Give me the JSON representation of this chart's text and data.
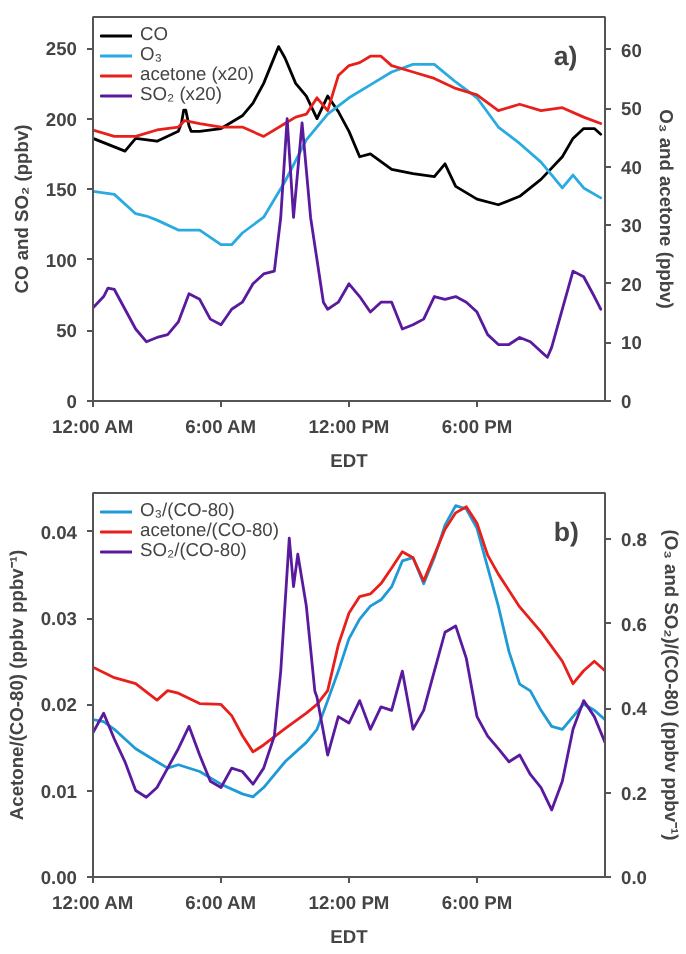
{
  "chart_data": [
    {
      "type": "line",
      "xlabel": "EDT",
      "ylabel": "CO and SO₂ (ppbv)",
      "y2label": "O₃ and acetone (ppbv)",
      "annotations": [
        "a)"
      ],
      "xlim": [
        0,
        24
      ],
      "xticks": [
        {
          "value": 0,
          "label": "12:00 AM"
        },
        {
          "value": 6,
          "label": "6:00 AM"
        },
        {
          "value": 12,
          "label": "12:00 PM"
        },
        {
          "value": 18,
          "label": "6:00 PM"
        }
      ],
      "ylim": [
        0,
        272
      ],
      "yticks": [
        0,
        50,
        100,
        150,
        200,
        250
      ],
      "y2lim": [
        0,
        65.6
      ],
      "y2ticks": [
        0,
        10,
        20,
        30,
        40,
        50,
        60
      ],
      "grid": false,
      "legend": "top left",
      "marker": "none",
      "line_style": "solid",
      "series": [
        {
          "name": "CO",
          "color": "#000000",
          "x": [
            0,
            1,
            1.5,
            2,
            3,
            4,
            4.15,
            4.25,
            4.35,
            4.5,
            4.6,
            5,
            6,
            7,
            7.5,
            8,
            8.7,
            9,
            9.5,
            10,
            10.5,
            11,
            11.5,
            12,
            12.5,
            13,
            14,
            15,
            16,
            16.5,
            17,
            18,
            19,
            20,
            21,
            22,
            22.5,
            23,
            23.5,
            23.8
          ],
          "values": [
            186,
            180,
            177,
            186,
            184,
            191,
            197,
            206,
            206,
            195,
            191,
            191,
            193,
            202,
            211,
            225,
            251,
            243,
            225,
            216,
            200,
            216,
            205,
            191,
            173,
            175,
            164,
            161,
            159,
            168,
            152,
            143,
            139,
            145,
            157,
            173,
            186,
            193,
            193,
            189
          ]
        },
        {
          "name": "O₃",
          "color": "#29abe2",
          "axis": "y2",
          "x": [
            0,
            1,
            2,
            2.5,
            3,
            4,
            5,
            6,
            6.5,
            7,
            8,
            9,
            10,
            11,
            12,
            13,
            14,
            15,
            16,
            17,
            18,
            19,
            20,
            21,
            22,
            22.5,
            23,
            23.8
          ],
          "values": [
            35.8,
            35.3,
            32,
            31.6,
            30.9,
            29.2,
            29.2,
            26.7,
            26.7,
            28.7,
            31.4,
            37.5,
            44.6,
            49,
            51.8,
            54,
            56.2,
            57.5,
            57.5,
            54.5,
            51.8,
            46.8,
            44,
            40.8,
            36.4,
            38.6,
            36.4,
            34.7
          ]
        },
        {
          "name": "acetone (x20)",
          "color": "#e8201c",
          "axis": "y2",
          "x": [
            0,
            1,
            2,
            3,
            4,
            4.3,
            5,
            6,
            7,
            8,
            9,
            9.5,
            10,
            10.5,
            11,
            11.5,
            12,
            12.5,
            13,
            13.5,
            14,
            15,
            16,
            17,
            18,
            19,
            20,
            21,
            22,
            23,
            23.8
          ],
          "values": [
            46.3,
            45.2,
            45.2,
            46.3,
            46.8,
            47.9,
            47.4,
            46.8,
            46.8,
            45.2,
            47.4,
            48.5,
            49,
            51.8,
            49.6,
            55.6,
            57.3,
            57.8,
            58.9,
            58.9,
            57.3,
            56.2,
            55.1,
            53.4,
            52.3,
            49.6,
            50.7,
            49.6,
            50.1,
            48.5,
            47.4
          ]
        },
        {
          "name": "SO₂ (x20)",
          "color": "#5a1a9e",
          "x": [
            0,
            0.5,
            0.7,
            1,
            1.5,
            2,
            2.5,
            3,
            3.5,
            4,
            4.5,
            5,
            5.5,
            6,
            6.5,
            7,
            7.5,
            8,
            8.5,
            8.8,
            9.1,
            9.4,
            9.8,
            10.2,
            10.5,
            10.8,
            11,
            11.5,
            12,
            12.5,
            13,
            13.5,
            14,
            14.5,
            15,
            15.5,
            16,
            16.5,
            17,
            17.5,
            18,
            18.5,
            19,
            19.5,
            20,
            20.5,
            21,
            21.3,
            21.5,
            22,
            22.5,
            23,
            23.5,
            23.8
          ],
          "values": [
            66,
            74,
            80,
            79,
            65,
            51,
            42,
            45,
            47,
            56,
            76,
            72,
            58,
            54,
            65,
            70,
            83,
            90,
            92,
            130,
            200,
            130,
            197,
            130,
            100,
            70,
            65,
            70,
            83,
            74,
            63,
            70,
            70,
            51,
            54,
            58,
            74,
            72,
            74,
            70,
            63,
            47,
            40,
            40,
            45,
            42,
            35,
            31,
            38,
            65,
            92,
            88,
            74,
            65
          ]
        }
      ]
    },
    {
      "type": "line",
      "xlabel": "EDT",
      "ylabel": "Acetone/(CO-80) (ppbv ppbv⁻¹)",
      "y2label": "(O₃ and SO₂)/(CO-80) (ppbv ppbv⁻¹)",
      "annotations": [
        "b)"
      ],
      "xlim": [
        0,
        24
      ],
      "xticks": [
        {
          "value": 0,
          "label": "12:00 AM"
        },
        {
          "value": 6,
          "label": "6:00 AM"
        },
        {
          "value": 12,
          "label": "12:00 PM"
        },
        {
          "value": 18,
          "label": "6:00 PM"
        }
      ],
      "ylim": [
        0,
        0.0445
      ],
      "yticks": [
        {
          "value": 0,
          "label": "0.00"
        },
        {
          "value": 0.01,
          "label": "0.01"
        },
        {
          "value": 0.02,
          "label": "0.02"
        },
        {
          "value": 0.03,
          "label": "0.03"
        },
        {
          "value": 0.04,
          "label": "0.04"
        }
      ],
      "y2lim": [
        0,
        0.91
      ],
      "y2ticks": [
        {
          "value": 0,
          "label": "0.0"
        },
        {
          "value": 0.2,
          "label": "0.2"
        },
        {
          "value": 0.4,
          "label": "0.4"
        },
        {
          "value": 0.6,
          "label": "0.6"
        },
        {
          "value": 0.8,
          "label": "0.8"
        }
      ],
      "grid": false,
      "legend": "top left",
      "marker": "none",
      "line_style": "solid",
      "series": [
        {
          "name": "O₃/(CO-80)",
          "color": "#1e9ad6",
          "axis": "y2",
          "x": [
            0,
            0.5,
            1,
            2,
            3,
            3.5,
            4,
            5,
            6,
            7,
            7.5,
            8,
            9,
            10,
            10.5,
            11,
            11.5,
            12,
            12.5,
            13,
            13.5,
            14,
            14.5,
            15,
            15.5,
            16,
            16.5,
            17,
            17.5,
            18,
            18.5,
            19,
            19.5,
            20,
            20.5,
            21,
            21.5,
            22,
            22.5,
            23,
            23.5,
            24
          ],
          "values": [
            0.373,
            0.368,
            0.35,
            0.304,
            0.273,
            0.258,
            0.266,
            0.25,
            0.22,
            0.197,
            0.19,
            0.212,
            0.273,
            0.319,
            0.35,
            0.418,
            0.488,
            0.565,
            0.611,
            0.642,
            0.657,
            0.688,
            0.749,
            0.757,
            0.695,
            0.757,
            0.834,
            0.88,
            0.872,
            0.826,
            0.734,
            0.642,
            0.534,
            0.457,
            0.441,
            0.395,
            0.357,
            0.35,
            0.38,
            0.41,
            0.395,
            0.373
          ]
        },
        {
          "name": "acetone/(CO-80)",
          "color": "#e8201c",
          "x": [
            0,
            1,
            2,
            3,
            3.5,
            4,
            5,
            6,
            6.5,
            7,
            7.5,
            8,
            9,
            10,
            10.5,
            11,
            11.5,
            12,
            12.5,
            13,
            13.5,
            14,
            14.5,
            15,
            15.5,
            16,
            16.5,
            17,
            17.5,
            18,
            18.5,
            19,
            20,
            21,
            22,
            22.5,
            23,
            23.5,
            24
          ],
          "values": [
            0.0243,
            0.0231,
            0.0224,
            0.0205,
            0.0216,
            0.0213,
            0.0201,
            0.02,
            0.0187,
            0.0164,
            0.0145,
            0.0153,
            0.0172,
            0.019,
            0.02,
            0.0216,
            0.0269,
            0.0306,
            0.0325,
            0.0328,
            0.034,
            0.0358,
            0.0377,
            0.037,
            0.0343,
            0.0373,
            0.0403,
            0.0422,
            0.0429,
            0.041,
            0.0373,
            0.0351,
            0.0313,
            0.0284,
            0.025,
            0.0224,
            0.0239,
            0.025,
            0.0239
          ]
        },
        {
          "name": "SO₂/(CO-80)",
          "color": "#5a1a9e",
          "axis": "y2",
          "x": [
            0,
            0.5,
            1,
            1.5,
            2,
            2.5,
            3,
            3.5,
            4,
            4.5,
            5,
            5.5,
            6,
            6.5,
            7,
            7.5,
            8,
            8.5,
            8.8,
            9.2,
            9.4,
            9.6,
            10,
            10.4,
            10.5,
            11,
            11.5,
            12,
            12.5,
            13,
            13.5,
            14,
            14.5,
            15,
            15.5,
            16,
            16.5,
            17,
            17.5,
            18,
            18.5,
            19,
            19.5,
            20,
            20.5,
            21,
            21.5,
            22,
            22.5,
            23,
            23.5,
            24
          ],
          "values": [
            0.342,
            0.388,
            0.327,
            0.273,
            0.205,
            0.189,
            0.212,
            0.258,
            0.304,
            0.357,
            0.289,
            0.227,
            0.212,
            0.258,
            0.25,
            0.22,
            0.258,
            0.334,
            0.488,
            0.803,
            0.688,
            0.765,
            0.642,
            0.44,
            0.426,
            0.289,
            0.38,
            0.365,
            0.418,
            0.35,
            0.403,
            0.395,
            0.488,
            0.35,
            0.395,
            0.488,
            0.58,
            0.595,
            0.518,
            0.38,
            0.334,
            0.304,
            0.273,
            0.289,
            0.243,
            0.212,
            0.159,
            0.227,
            0.35,
            0.418,
            0.38,
            0.319
          ]
        }
      ]
    }
  ]
}
